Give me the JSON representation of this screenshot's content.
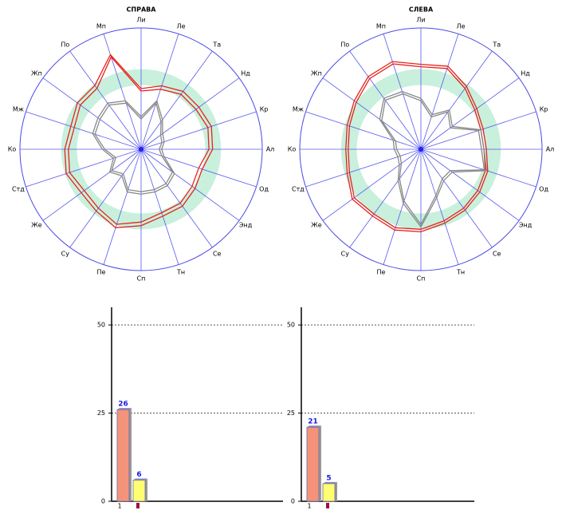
{
  "chart_data": [
    {
      "type": "radar",
      "title": "СПРАВА",
      "categories": [
        "Ли",
        "Ле",
        "Та",
        "Нд",
        "Кр",
        "Ал",
        "Од",
        "Энд",
        "Се",
        "Тн",
        "Сп",
        "Пе",
        "Су",
        "Же",
        "Стд",
        "Ко",
        "Мж",
        "Жп",
        "По",
        "Мп"
      ],
      "rlim": [
        0,
        100
      ],
      "norm_band": [
        53,
        66
      ],
      "band_color": "#c8f0dc",
      "series": [
        {
          "color": "#e8221c",
          "values": [
            48,
            52,
            56,
            56,
            58,
            56,
            50,
            52,
            55,
            55,
            60,
            65,
            60,
            58,
            62,
            60,
            58,
            62,
            62,
            80
          ]
        },
        {
          "color": "#e8221c",
          "values": [
            50,
            55,
            59,
            59,
            61,
            59,
            53,
            55,
            58,
            58,
            63,
            68,
            63,
            61,
            65,
            63,
            61,
            65,
            65,
            82
          ]
        },
        {
          "color": "#888888",
          "values": [
            25,
            40,
            28,
            20,
            18,
            15,
            18,
            32,
            35,
            35,
            35,
            35,
            25,
            30,
            22,
            30,
            40,
            42,
            45,
            40
          ]
        },
        {
          "color": "#888888",
          "values": [
            27,
            42,
            30,
            22,
            20,
            17,
            20,
            34,
            37,
            37,
            37,
            37,
            27,
            32,
            24,
            32,
            42,
            44,
            47,
            42
          ]
        }
      ]
    },
    {
      "type": "radar",
      "title": "СЛЕВА",
      "categories": [
        "Ли",
        "Ле",
        "Та",
        "Нд",
        "Кр",
        "Ал",
        "Од",
        "Энд",
        "Се",
        "Тн",
        "Сп",
        "Пе",
        "Су",
        "Же",
        "Стд",
        "Ко",
        "Мж",
        "Жп",
        "По",
        "Мп"
      ],
      "rlim": [
        0,
        100
      ],
      "norm_band": [
        53,
        66
      ],
      "band_color": "#c8f0dc",
      "series": [
        {
          "color": "#e8221c",
          "values": [
            68,
            70,
            62,
            55,
            52,
            52,
            56,
            58,
            60,
            62,
            66,
            68,
            66,
            68,
            62,
            60,
            62,
            66,
            72,
            74
          ]
        },
        {
          "color": "#e8221c",
          "values": [
            70,
            72,
            64,
            57,
            54,
            54,
            58,
            60,
            62,
            64,
            68,
            70,
            68,
            70,
            64,
            62,
            64,
            68,
            74,
            76
          ]
        },
        {
          "color": "#888888",
          "values": [
            40,
            28,
            38,
            30,
            50,
            50,
            55,
            30,
            30,
            40,
            62,
            45,
            30,
            20,
            18,
            20,
            22,
            40,
            50,
            48
          ]
        },
        {
          "color": "#888888",
          "values": [
            42,
            30,
            40,
            32,
            52,
            52,
            57,
            32,
            32,
            42,
            64,
            47,
            32,
            22,
            20,
            22,
            24,
            42,
            52,
            50
          ]
        }
      ]
    },
    {
      "type": "bar",
      "categories": [
        "1",
        null
      ],
      "values": [
        26,
        6
      ],
      "colors": [
        "#f4937a",
        "#ffff70"
      ],
      "ylim": [
        0,
        55
      ],
      "yticks": [
        0,
        25,
        50
      ],
      "grid": true
    },
    {
      "type": "bar",
      "categories": [
        "1",
        null
      ],
      "values": [
        21,
        5
      ],
      "colors": [
        "#f4937a",
        "#ffff70"
      ],
      "ylim": [
        0,
        55
      ],
      "yticks": [
        0,
        25,
        50
      ],
      "grid": true
    }
  ]
}
